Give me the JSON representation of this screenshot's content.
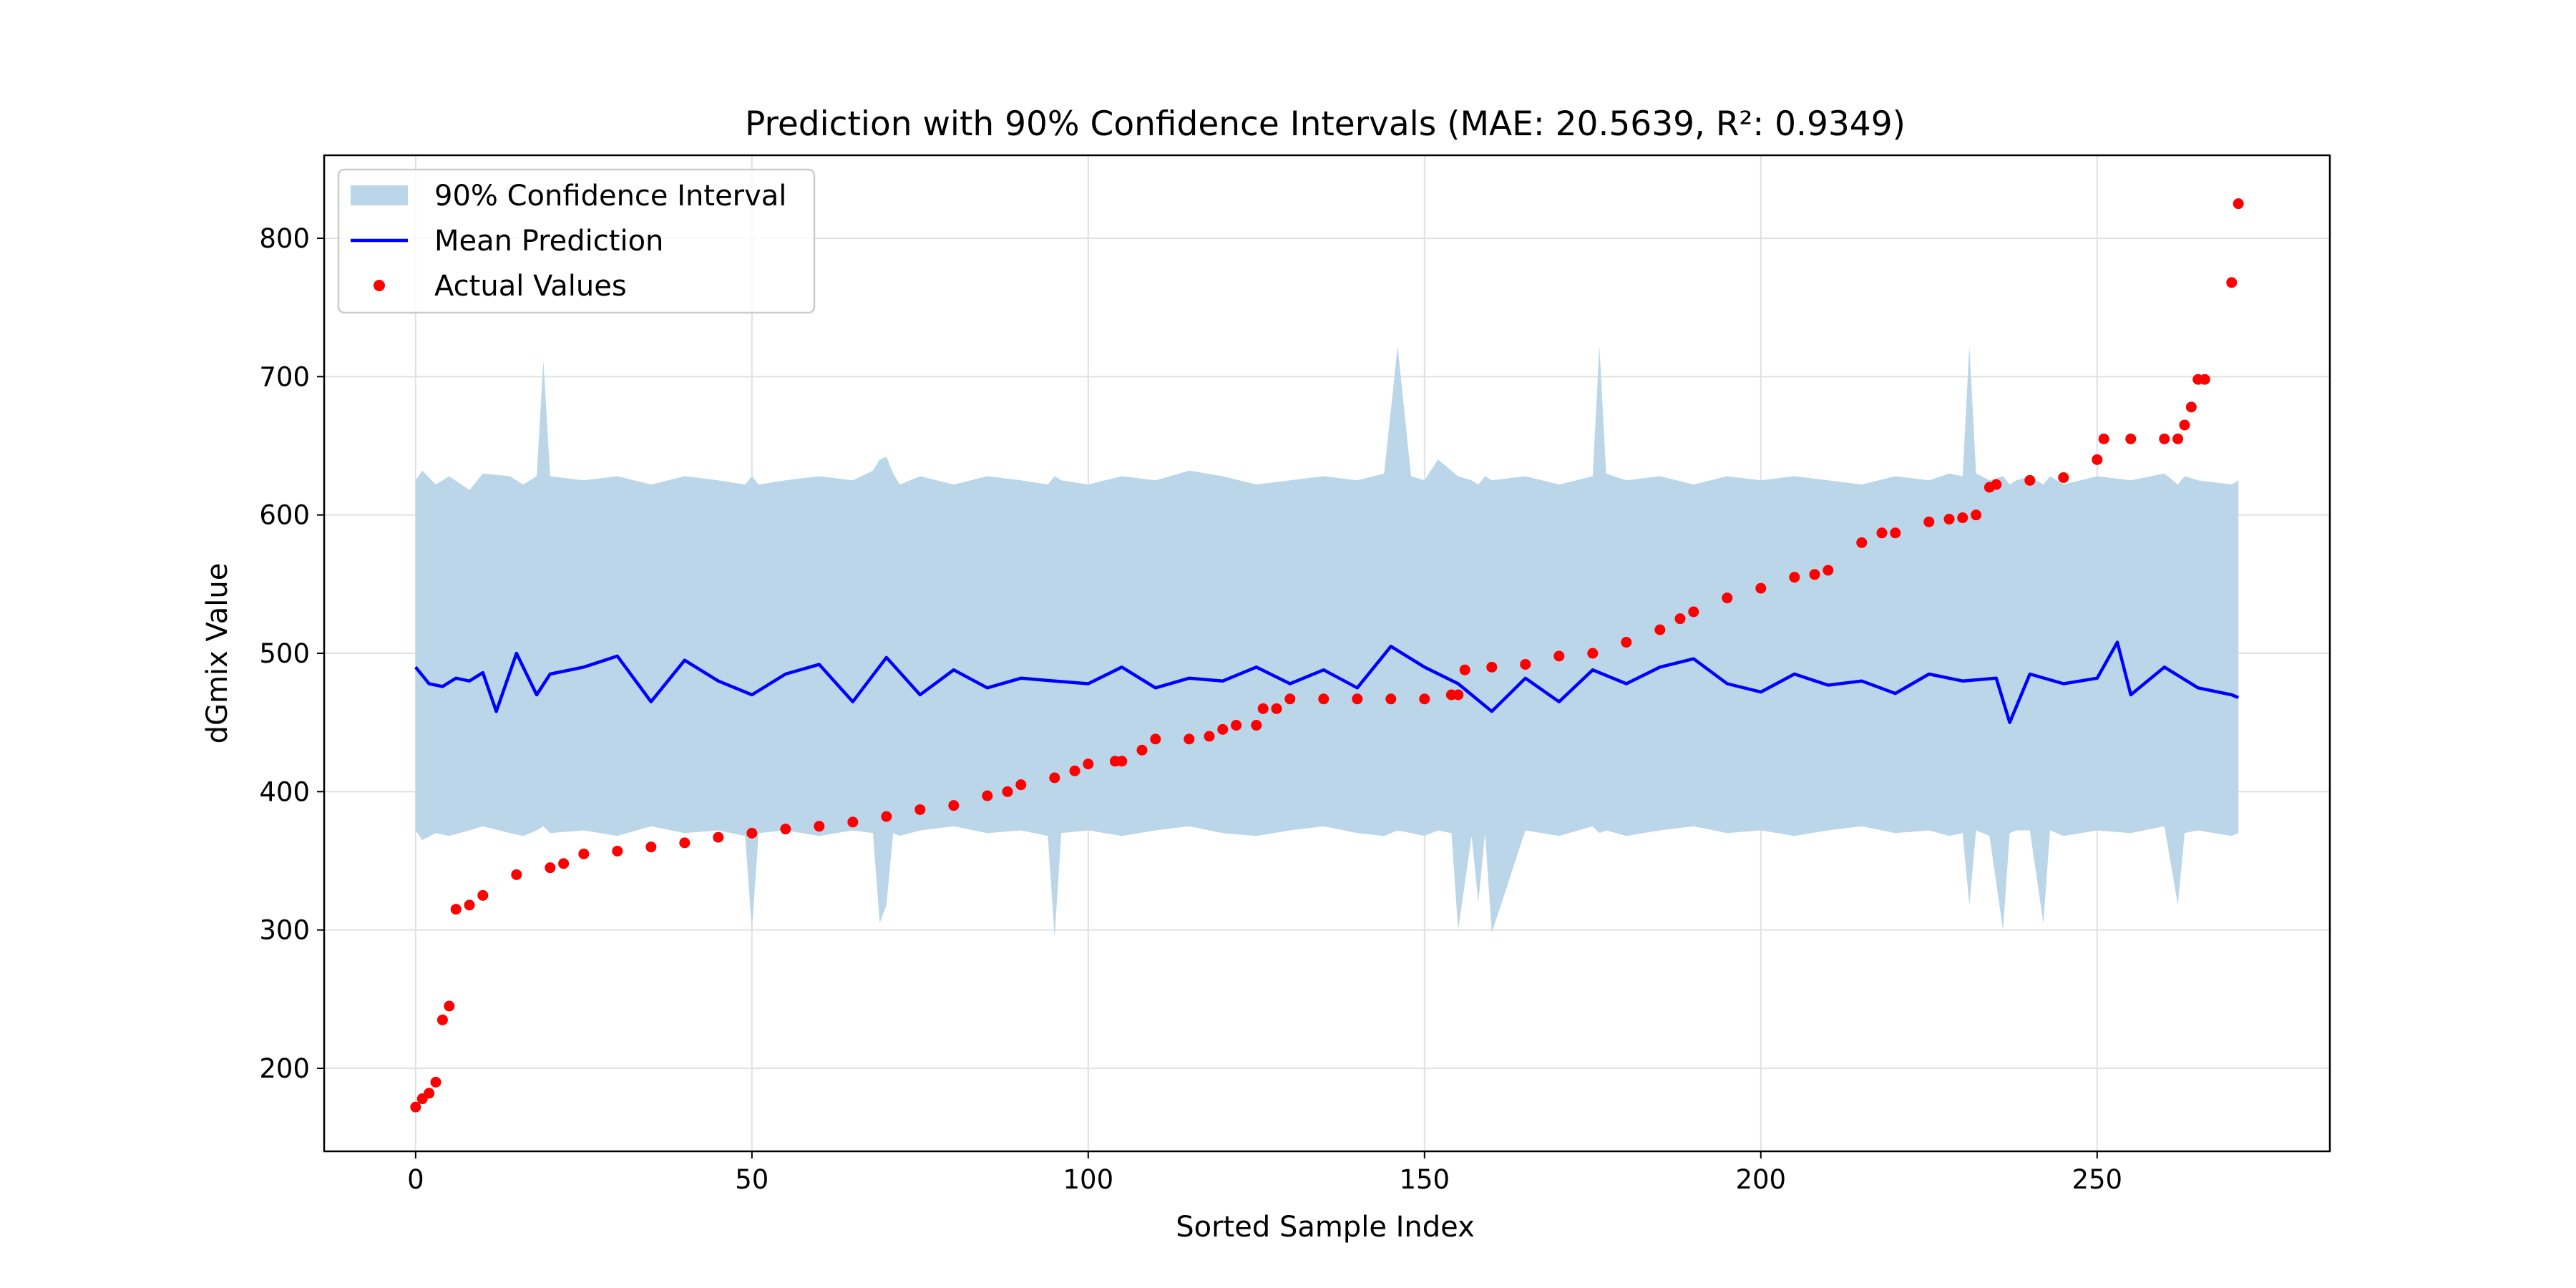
{
  "chart_data": {
    "type": "line",
    "title": "Prediction with 90% Confidence Intervals (MAE: 20.5639, R²: 0.9349)",
    "xlabel": "Sorted Sample Index",
    "ylabel": "dGmix Value",
    "xlim": [
      -13.6,
      284.6
    ],
    "ylim": [
      140,
      860
    ],
    "xticks": [
      0,
      50,
      100,
      150,
      200,
      250
    ],
    "yticks": [
      200,
      300,
      400,
      500,
      600,
      700,
      800
    ],
    "grid": true,
    "legend_position": "top-left",
    "legend": [
      {
        "label": "90% Confidence Interval",
        "kind": "band",
        "color": "#bad6e8"
      },
      {
        "label": "Mean Prediction",
        "kind": "line",
        "color": "#0000ff"
      },
      {
        "label": "Actual Values",
        "kind": "marker",
        "color": "#ff0000"
      }
    ],
    "series": [
      {
        "name": "Mean Prediction",
        "color": "#0000ff",
        "x": [
          0,
          2,
          4,
          6,
          8,
          10,
          12,
          15,
          18,
          20,
          25,
          30,
          35,
          40,
          45,
          50,
          55,
          60,
          65,
          70,
          75,
          80,
          85,
          90,
          95,
          100,
          105,
          110,
          115,
          120,
          125,
          130,
          135,
          140,
          145,
          150,
          155,
          160,
          165,
          170,
          175,
          180,
          185,
          190,
          195,
          200,
          205,
          210,
          215,
          220,
          225,
          230,
          235,
          237,
          240,
          245,
          250,
          253,
          255,
          260,
          265,
          270,
          271
        ],
        "values": [
          490,
          478,
          476,
          482,
          480,
          486,
          458,
          500,
          470,
          485,
          490,
          498,
          465,
          495,
          480,
          470,
          485,
          492,
          465,
          497,
          470,
          488,
          475,
          482,
          480,
          478,
          490,
          475,
          482,
          480,
          490,
          478,
          488,
          475,
          505,
          490,
          478,
          458,
          482,
          465,
          488,
          478,
          490,
          496,
          478,
          472,
          485,
          477,
          480,
          471,
          485,
          480,
          482,
          450,
          485,
          478,
          482,
          508,
          470,
          490,
          475,
          470,
          468
        ]
      },
      {
        "name": "90% Confidence Interval",
        "kind": "band",
        "color": "#bad6e8",
        "x": [
          0,
          1,
          3,
          5,
          8,
          10,
          14,
          16,
          18,
          19,
          20,
          25,
          30,
          35,
          40,
          45,
          49,
          50,
          51,
          55,
          60,
          65,
          68,
          69,
          70,
          71,
          72,
          75,
          80,
          85,
          90,
          94,
          95,
          96,
          100,
          105,
          110,
          115,
          120,
          125,
          130,
          135,
          140,
          144,
          146,
          148,
          150,
          152,
          154,
          155,
          157,
          158,
          159,
          160,
          165,
          170,
          175,
          176,
          177,
          180,
          185,
          190,
          195,
          200,
          205,
          210,
          215,
          220,
          225,
          228,
          230,
          231,
          232,
          234,
          236,
          237,
          238,
          240,
          242,
          243,
          244,
          245,
          250,
          255,
          260,
          262,
          263,
          265,
          270,
          271
        ],
        "upper": [
          625,
          632,
          622,
          628,
          618,
          630,
          628,
          622,
          628,
          712,
          628,
          625,
          628,
          622,
          628,
          625,
          622,
          628,
          622,
          625,
          628,
          625,
          632,
          640,
          642,
          630,
          622,
          628,
          622,
          628,
          625,
          622,
          628,
          625,
          622,
          628,
          625,
          632,
          628,
          622,
          625,
          628,
          625,
          630,
          722,
          628,
          625,
          640,
          632,
          628,
          625,
          622,
          628,
          625,
          628,
          622,
          628,
          722,
          630,
          625,
          628,
          622,
          628,
          625,
          628,
          625,
          622,
          628,
          625,
          630,
          628,
          722,
          630,
          625,
          628,
          622,
          625,
          628,
          622,
          628,
          625,
          622,
          628,
          625,
          630,
          622,
          628,
          625,
          622,
          625
        ],
        "lower": [
          372,
          365,
          370,
          368,
          372,
          375,
          370,
          368,
          372,
          375,
          370,
          372,
          368,
          375,
          370,
          372,
          368,
          300,
          370,
          372,
          368,
          372,
          370,
          305,
          318,
          370,
          368,
          372,
          375,
          370,
          372,
          368,
          295,
          370,
          372,
          368,
          372,
          375,
          370,
          368,
          372,
          375,
          370,
          368,
          372,
          370,
          368,
          372,
          370,
          300,
          368,
          320,
          370,
          298,
          372,
          368,
          375,
          370,
          372,
          368,
          372,
          375,
          370,
          372,
          368,
          372,
          375,
          370,
          372,
          368,
          370,
          318,
          372,
          368,
          300,
          370,
          372,
          372,
          305,
          372,
          370,
          368,
          372,
          370,
          375,
          318,
          370,
          372,
          368,
          370
        ]
      },
      {
        "name": "Actual Values",
        "kind": "scatter",
        "color": "#ff0000",
        "x": [
          0,
          1,
          2,
          3,
          4,
          5,
          6,
          8,
          10,
          15,
          20,
          22,
          25,
          30,
          35,
          40,
          45,
          50,
          55,
          60,
          65,
          70,
          75,
          80,
          85,
          88,
          90,
          95,
          98,
          100,
          104,
          105,
          108,
          110,
          115,
          118,
          120,
          122,
          125,
          126,
          128,
          130,
          135,
          140,
          145,
          150,
          154,
          155,
          156,
          160,
          165,
          170,
          175,
          180,
          185,
          188,
          190,
          195,
          200,
          205,
          208,
          210,
          215,
          218,
          220,
          225,
          228,
          230,
          232,
          234,
          235,
          240,
          245,
          250,
          251,
          255,
          260,
          262,
          263,
          264,
          265,
          266,
          270,
          271
        ],
        "values": [
          172,
          178,
          182,
          190,
          235,
          245,
          315,
          318,
          325,
          340,
          345,
          348,
          355,
          357,
          360,
          363,
          367,
          370,
          373,
          375,
          378,
          382,
          387,
          390,
          397,
          400,
          405,
          410,
          415,
          420,
          422,
          422,
          430,
          438,
          438,
          440,
          445,
          448,
          448,
          460,
          460,
          467,
          467,
          467,
          467,
          467,
          470,
          470,
          488,
          490,
          492,
          498,
          500,
          508,
          517,
          525,
          530,
          540,
          547,
          555,
          557,
          560,
          580,
          587,
          587,
          595,
          597,
          598,
          600,
          620,
          622,
          625,
          627,
          640,
          655,
          655,
          655,
          655,
          665,
          678,
          698,
          698,
          768,
          825
        ]
      }
    ]
  }
}
